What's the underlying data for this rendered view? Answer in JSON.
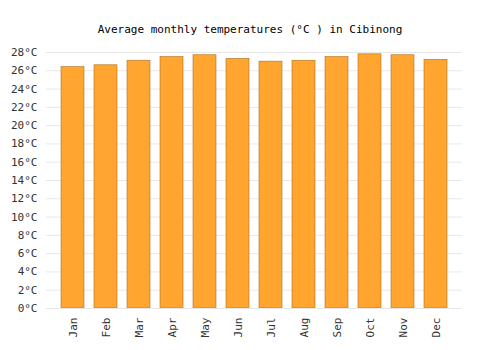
{
  "chart_data": {
    "type": "bar",
    "title": "Average monthly temperatures (°C ) in Cibinong",
    "categories": [
      "Jan",
      "Feb",
      "Mar",
      "Apr",
      "May",
      "Jun",
      "Jul",
      "Aug",
      "Sep",
      "Oct",
      "Nov",
      "Dec"
    ],
    "values": [
      26.4,
      26.6,
      27.1,
      27.5,
      27.7,
      27.3,
      27.0,
      27.1,
      27.5,
      27.8,
      27.7,
      27.2
    ],
    "color": "#ffa530",
    "ylim": [
      0,
      28
    ],
    "yticks": [
      {
        "value": 0,
        "label": "0°C"
      },
      {
        "value": 2,
        "label": "2°C"
      },
      {
        "value": 4,
        "label": "4°C"
      },
      {
        "value": 6,
        "label": "6°C"
      },
      {
        "value": 8,
        "label": "8°C"
      },
      {
        "value": 10,
        "label": "10°C"
      },
      {
        "value": 12,
        "label": "12°C"
      },
      {
        "value": 14,
        "label": "14°C"
      },
      {
        "value": 16,
        "label": "16°C"
      },
      {
        "value": 18,
        "label": "18°C"
      },
      {
        "value": 20,
        "label": "20°C"
      },
      {
        "value": 22,
        "label": "22°C"
      },
      {
        "value": 24,
        "label": "24°C"
      },
      {
        "value": 26,
        "label": "26°C"
      },
      {
        "value": 28,
        "label": "28°C"
      }
    ],
    "grid": true
  }
}
